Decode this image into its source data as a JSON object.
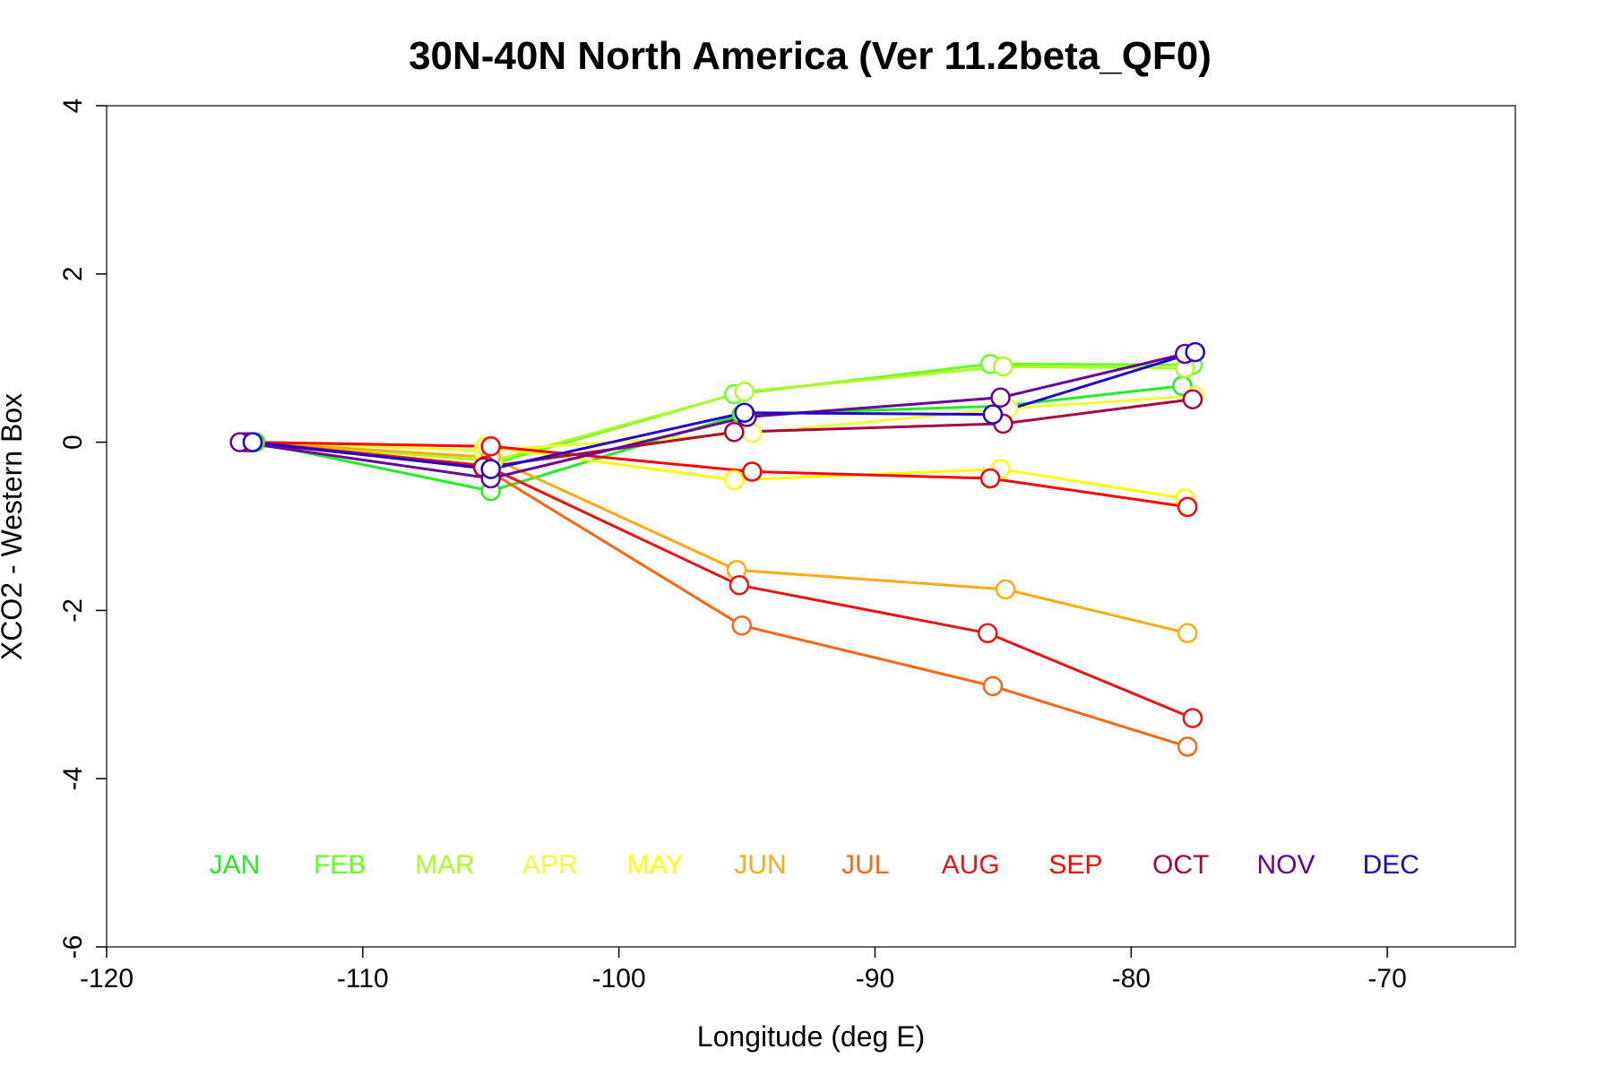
{
  "chart_data": {
    "type": "line",
    "title": "30N-40N North America (Ver 11.2beta_QF0)",
    "xlabel": "Longitude (deg E)",
    "ylabel": "XCO2 - Western Box",
    "xlim": [
      -120,
      -65
    ],
    "ylim": [
      -6,
      4
    ],
    "x_ticks": [
      -120,
      -110,
      -100,
      -90,
      -80,
      -70
    ],
    "x_tick_labels": [
      "-120",
      "-110",
      "-100",
      "-90",
      "-80",
      "-70"
    ],
    "y_ticks": [
      -6,
      -4,
      -2,
      0,
      2,
      4
    ],
    "y_tick_labels": [
      "-6",
      "-4",
      "-2",
      "0",
      "2",
      "4"
    ],
    "grid": false,
    "legend_position": "bottom-inside",
    "series": [
      {
        "name": "JAN",
        "color": "#22ee22",
        "x": [
          -114.2,
          -105.0,
          -95.2,
          -85.0,
          -78.0
        ],
        "y": [
          0.0,
          -0.58,
          0.33,
          0.43,
          0.67
        ]
      },
      {
        "name": "FEB",
        "color": "#66ff22",
        "x": [
          -114.3,
          -105.2,
          -95.5,
          -85.5,
          -77.6
        ],
        "y": [
          0.0,
          -0.28,
          0.57,
          0.93,
          0.92
        ]
      },
      {
        "name": "MAR",
        "color": "#aaff22",
        "x": [
          -114.5,
          -104.9,
          -95.1,
          -85.0,
          -77.9
        ],
        "y": [
          0.0,
          -0.22,
          0.6,
          0.9,
          0.88
        ]
      },
      {
        "name": "APR",
        "color": "#eeff33",
        "x": [
          -114.4,
          -105.3,
          -94.8,
          -84.8,
          -77.5
        ],
        "y": [
          0.0,
          -0.1,
          0.11,
          0.4,
          0.55
        ]
      },
      {
        "name": "MAY",
        "color": "#ffff00",
        "x": [
          -114.3,
          -105.2,
          -95.5,
          -85.1,
          -77.9
        ],
        "y": [
          0.0,
          -0.05,
          -0.45,
          -0.32,
          -0.67
        ]
      },
      {
        "name": "JUN",
        "color": "#ffaa11",
        "x": [
          -114.5,
          -105.0,
          -95.4,
          -84.9,
          -77.8
        ],
        "y": [
          0.0,
          -0.18,
          -1.52,
          -1.75,
          -2.27
        ]
      },
      {
        "name": "JUL",
        "color": "#ff6611",
        "x": [
          -114.4,
          -105.3,
          -95.2,
          -85.4,
          -77.8
        ],
        "y": [
          0.0,
          -0.3,
          -2.18,
          -2.9,
          -3.62
        ]
      },
      {
        "name": "AUG",
        "color": "#ee1111",
        "x": [
          -114.3,
          -105.2,
          -95.3,
          -85.6,
          -77.6
        ],
        "y": [
          0.0,
          -0.28,
          -1.7,
          -2.27,
          -3.28
        ]
      },
      {
        "name": "SEP",
        "color": "#ff0000",
        "x": [
          -114.4,
          -105.0,
          -94.8,
          -85.5,
          -77.8
        ],
        "y": [
          0.0,
          -0.05,
          -0.35,
          -0.43,
          -0.77
        ]
      },
      {
        "name": "OCT",
        "color": "#aa0044",
        "x": [
          -114.6,
          -105.3,
          -95.5,
          -85.0,
          -77.6
        ],
        "y": [
          0.0,
          -0.3,
          0.12,
          0.22,
          0.51
        ]
      },
      {
        "name": "NOV",
        "color": "#660099",
        "x": [
          -114.8,
          -105.0,
          -95.0,
          -85.1,
          -77.9
        ],
        "y": [
          0.0,
          -0.43,
          0.3,
          0.53,
          1.05
        ]
      },
      {
        "name": "DEC",
        "color": "#2200cc",
        "x": [
          -114.3,
          -105.0,
          -95.1,
          -85.4,
          -77.5
        ],
        "y": [
          0.0,
          -0.32,
          0.35,
          0.33,
          1.07
        ]
      }
    ]
  }
}
